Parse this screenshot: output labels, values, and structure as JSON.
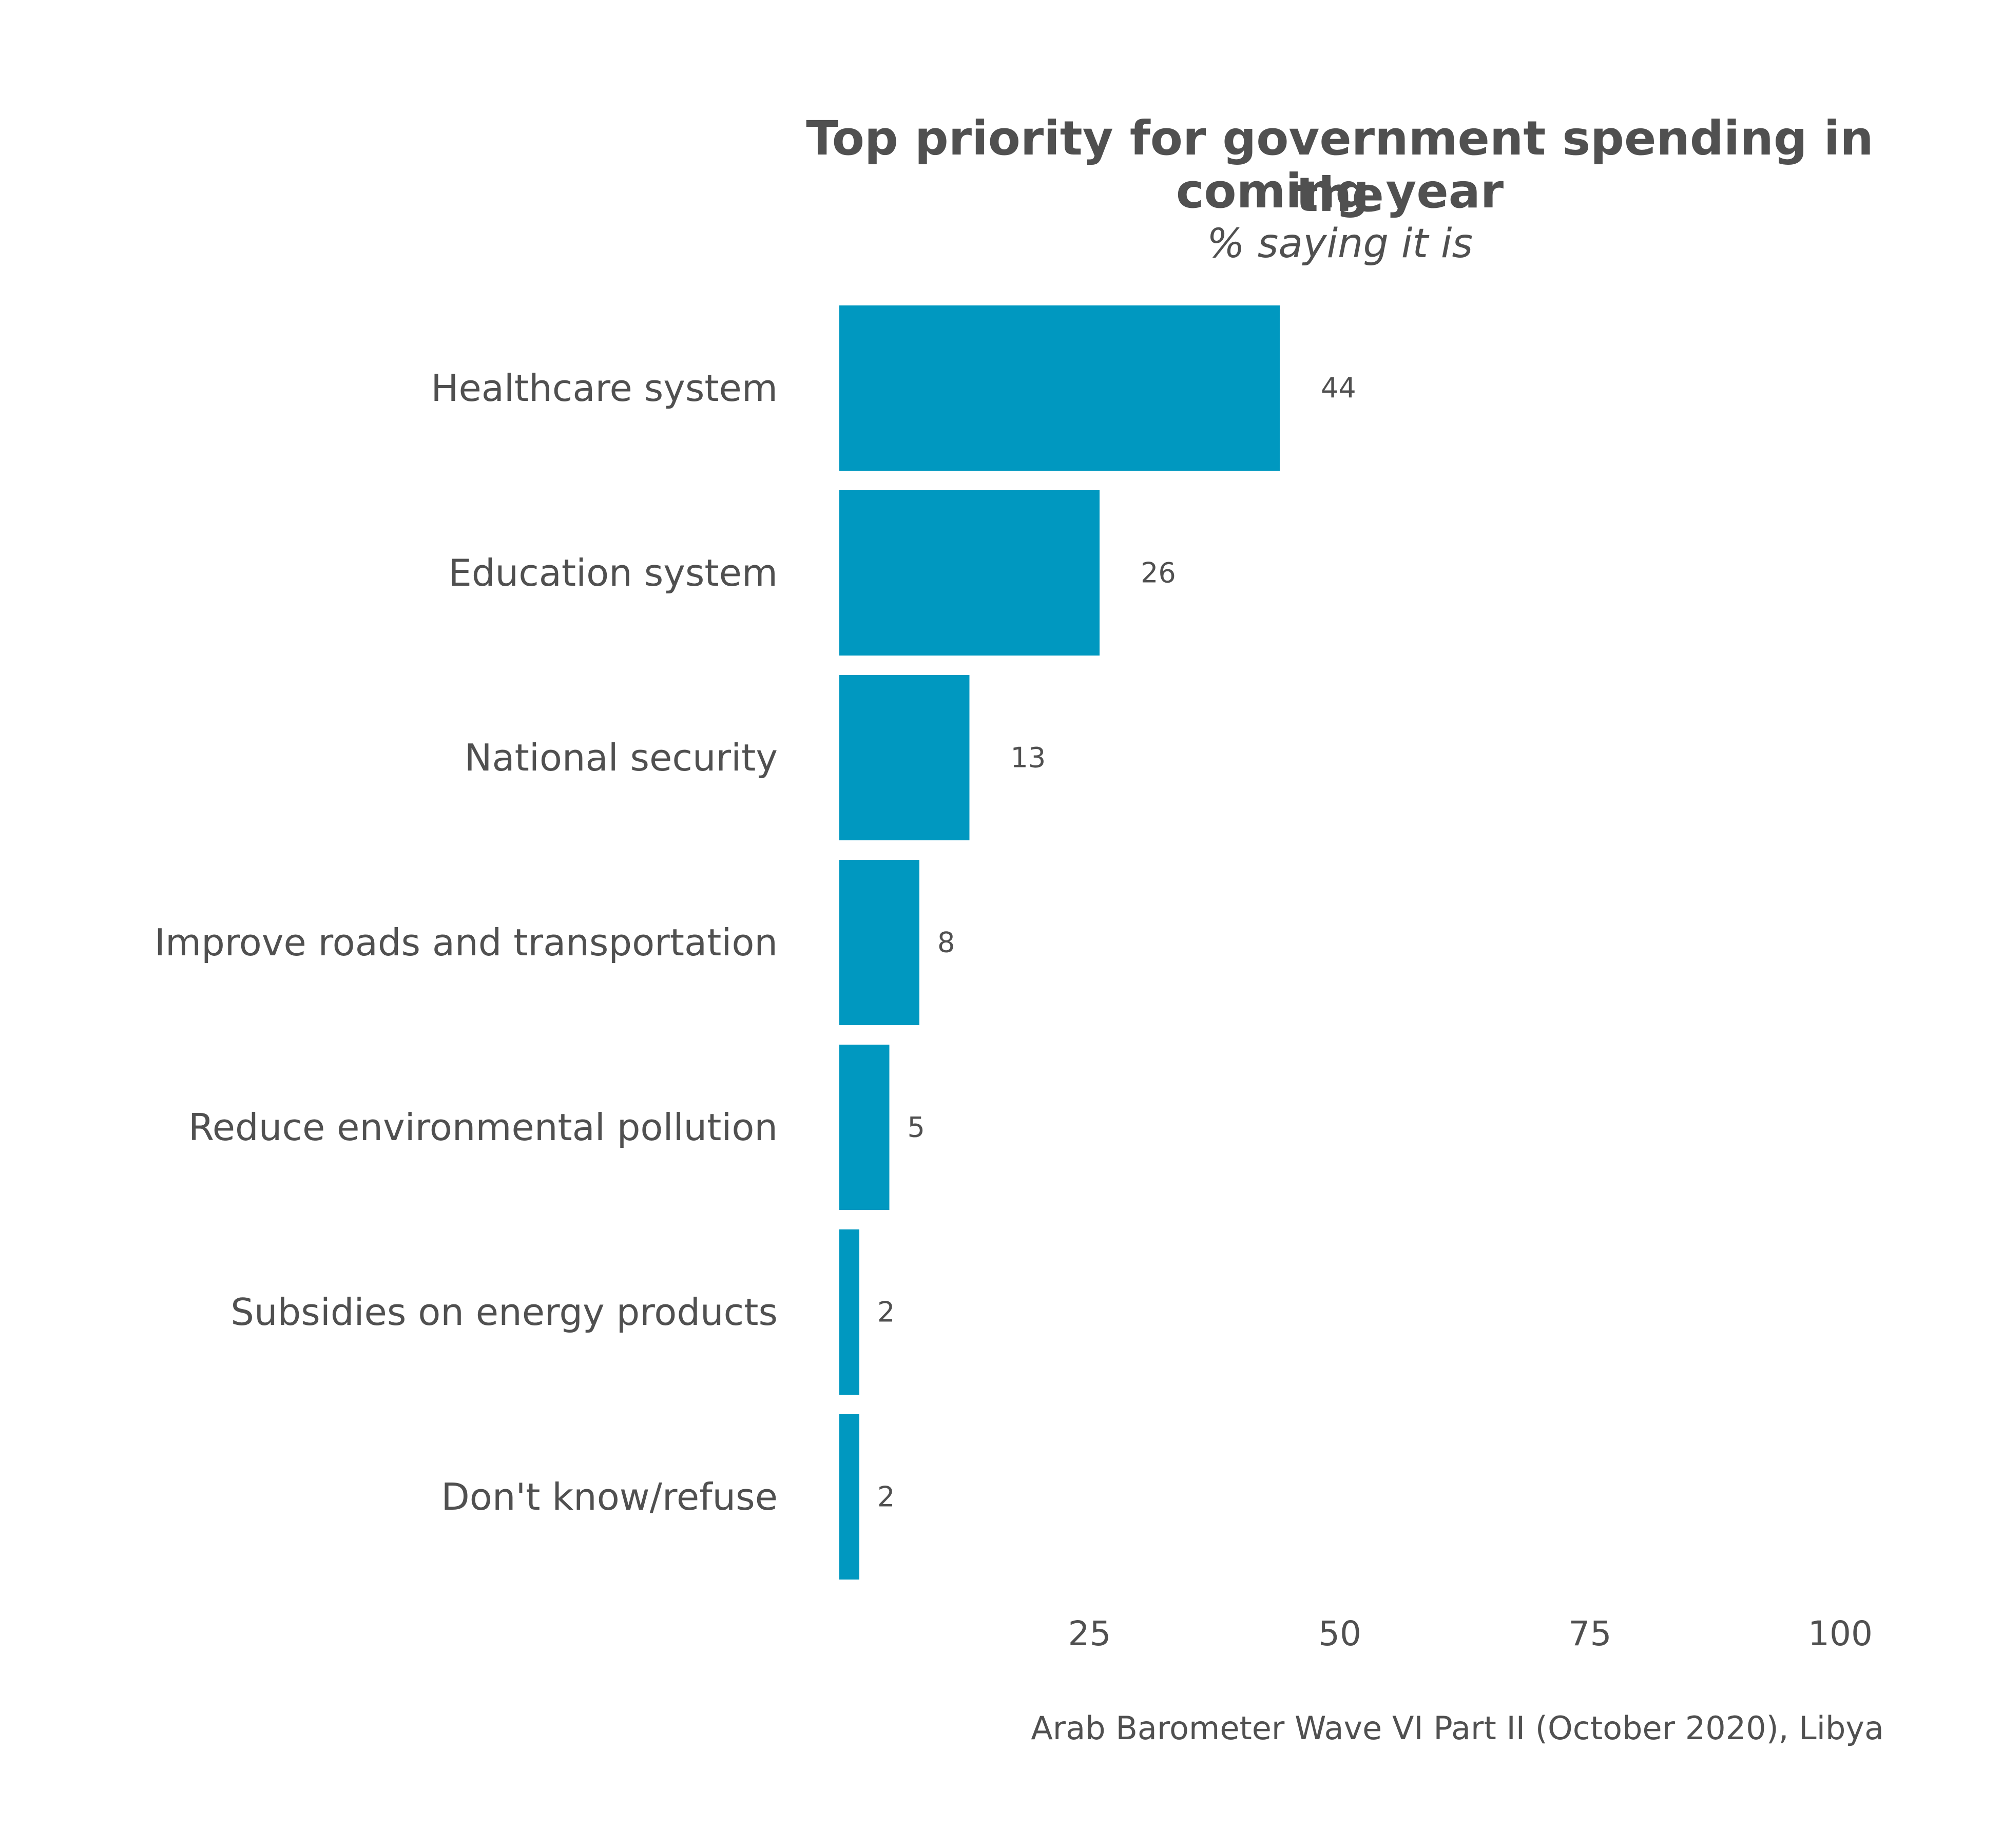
{
  "chart_data": {
    "type": "bar",
    "orientation": "horizontal",
    "title_lines": [
      "Top priority for government spending in the",
      "coming year"
    ],
    "subtitle": "% saying it is",
    "categories": [
      "Healthcare system",
      "Education system",
      "National security",
      "Improve roads and transportation",
      "Reduce environmental pollution",
      "Subsidies on energy products",
      "Don't know/refuse"
    ],
    "values": [
      44,
      26,
      13,
      8,
      5,
      2,
      2
    ],
    "value_labels": [
      "44",
      "26",
      "13",
      "8",
      "5",
      "2",
      "2"
    ],
    "xlim": [
      0,
      100
    ],
    "xticks": [
      25,
      50,
      75,
      100
    ],
    "xtick_labels": [
      "25",
      "50",
      "75",
      "100"
    ],
    "grid": false,
    "bar_color": "#0098c0",
    "caption": "Arab Barometer Wave VI Part II (October 2020), Libya"
  }
}
